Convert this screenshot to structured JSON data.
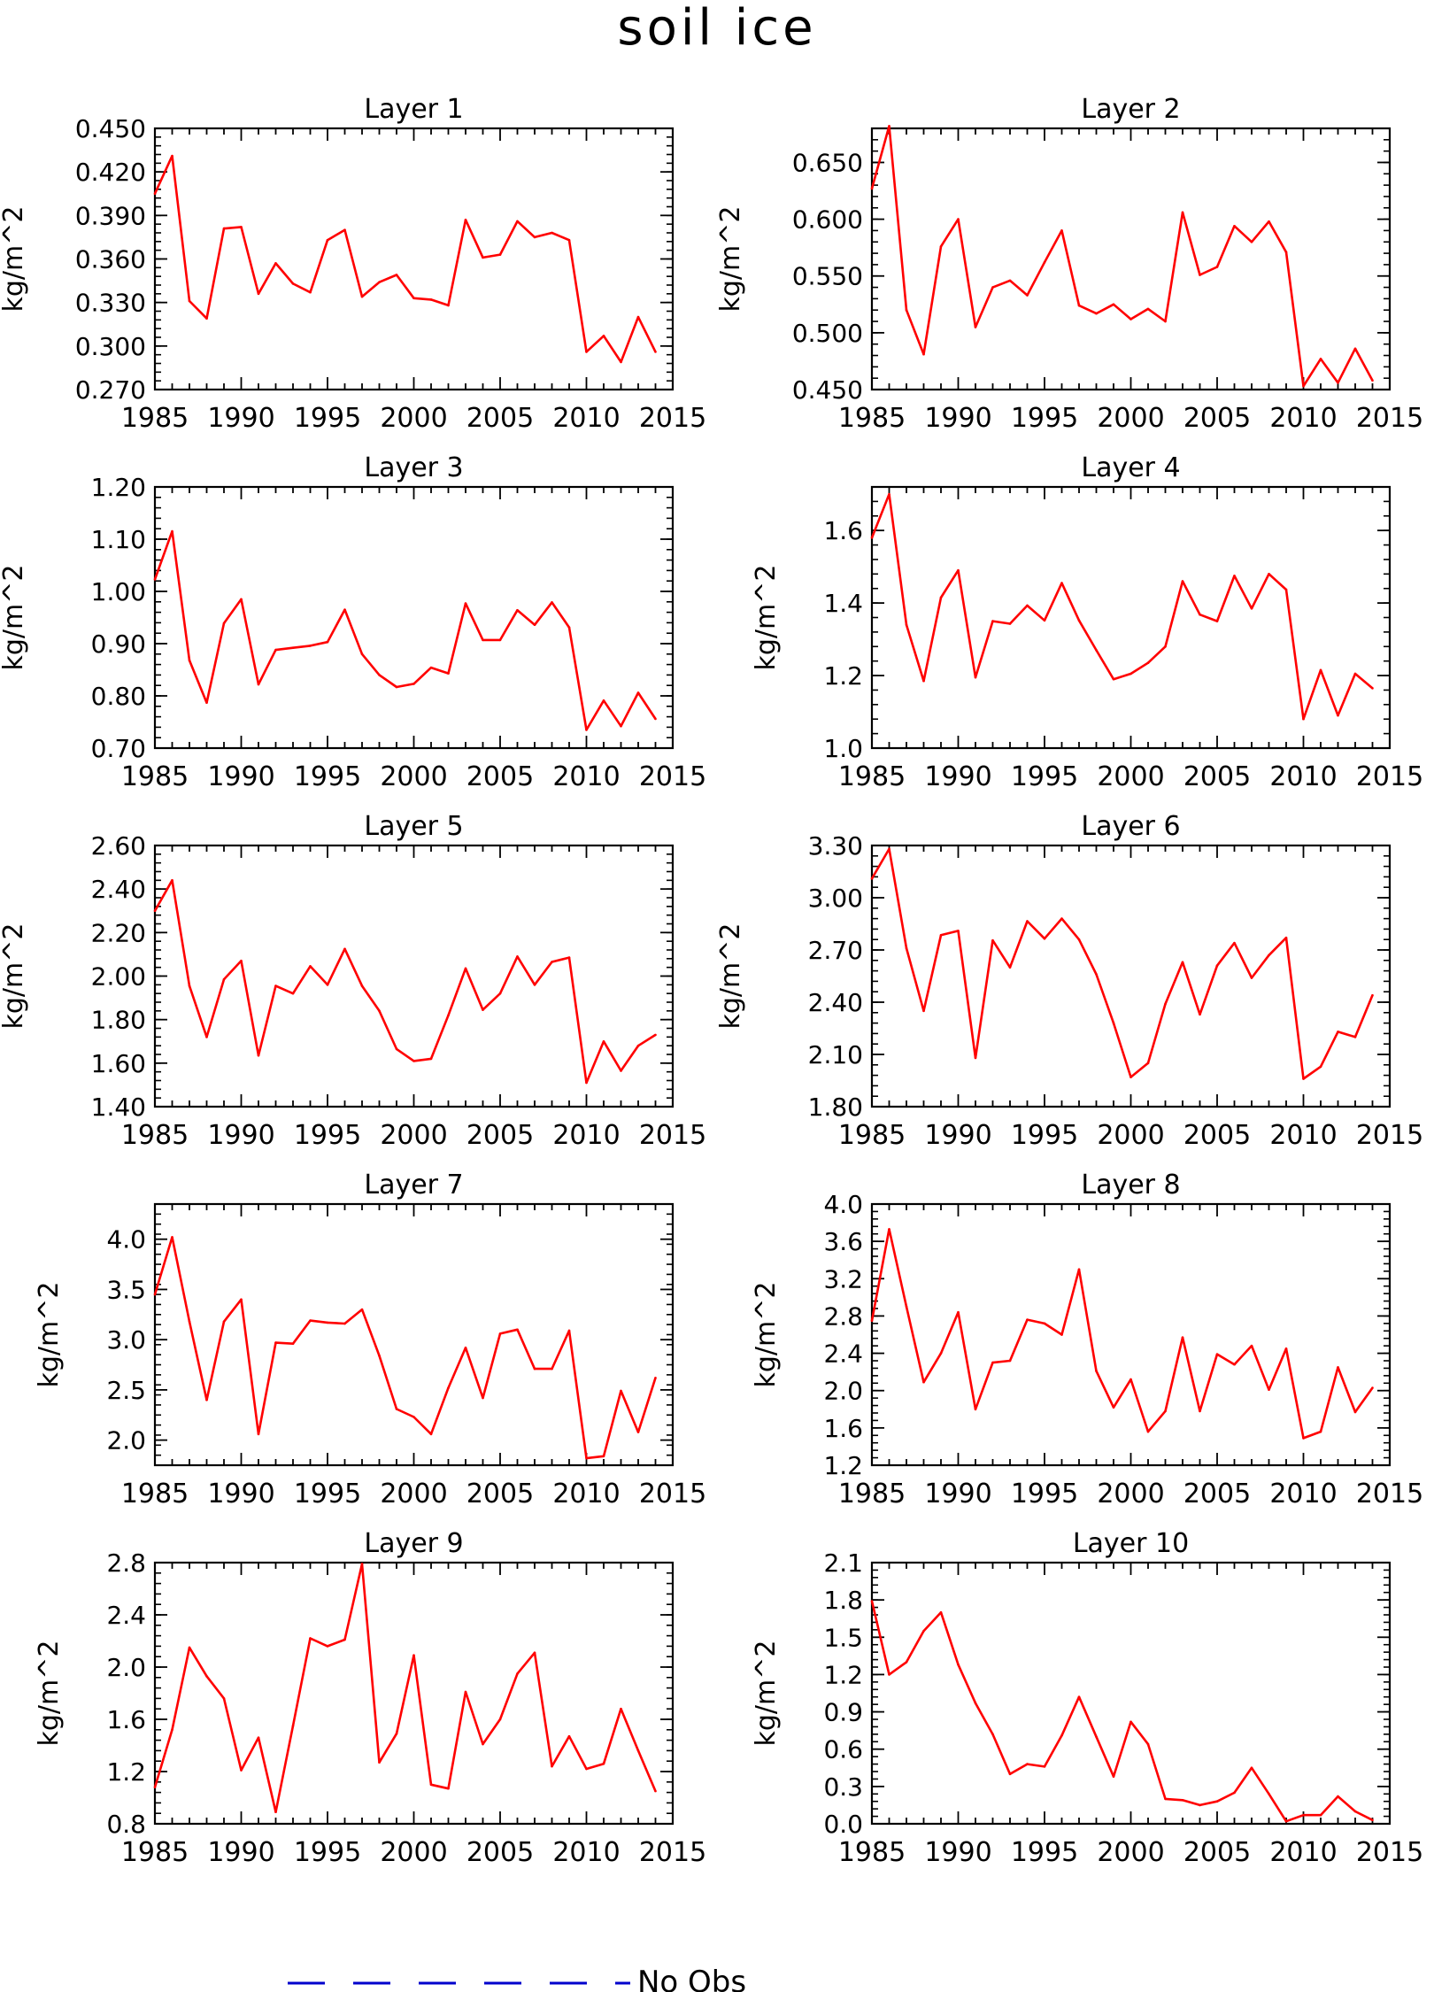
{
  "figure": {
    "title": "soil ice",
    "legend_label": "No Obs",
    "legend_color": "#0000cc",
    "series_color": "#ff0000"
  },
  "chart_data": [
    {
      "type": "line",
      "title": "Layer 1",
      "xlabel": "",
      "ylabel": "kg/m^2",
      "xlim": [
        1985,
        2015
      ],
      "ylim": [
        0.27,
        0.45
      ],
      "xticks": [
        "1985",
        "1990",
        "1995",
        "2000",
        "2005",
        "2010",
        "2015"
      ],
      "yticks": [
        "0.270",
        "0.300",
        "0.330",
        "0.360",
        "0.390",
        "0.420",
        "0.450"
      ],
      "x": [
        1985,
        1986,
        1987,
        1988,
        1989,
        1990,
        1991,
        1992,
        1993,
        1994,
        1995,
        1996,
        1997,
        1998,
        1999,
        2000,
        2001,
        2002,
        2003,
        2004,
        2005,
        2006,
        2007,
        2008,
        2009,
        2010,
        2011,
        2012,
        2013,
        2014
      ],
      "values": [
        0.405,
        0.431,
        0.331,
        0.319,
        0.381,
        0.382,
        0.336,
        0.357,
        0.343,
        0.337,
        0.373,
        0.38,
        0.334,
        0.344,
        0.349,
        0.333,
        0.332,
        0.328,
        0.387,
        0.361,
        0.363,
        0.386,
        0.375,
        0.378,
        0.373,
        0.296,
        0.307,
        0.289,
        0.32,
        0.296
      ]
    },
    {
      "type": "line",
      "title": "Layer 2",
      "xlabel": "",
      "ylabel": "kg/m^2",
      "xlim": [
        1985,
        2015
      ],
      "ylim": [
        0.45,
        0.68
      ],
      "xticks": [
        "1985",
        "1990",
        "1995",
        "2000",
        "2005",
        "2010",
        "2015"
      ],
      "yticks": [
        "0.450",
        "0.500",
        "0.550",
        "0.600",
        "0.650"
      ],
      "x": [
        1985,
        1986,
        1987,
        1988,
        1989,
        1990,
        1991,
        1992,
        1993,
        1994,
        1995,
        1996,
        1997,
        1998,
        1999,
        2000,
        2001,
        2002,
        2003,
        2004,
        2005,
        2006,
        2007,
        2008,
        2009,
        2010,
        2011,
        2012,
        2013,
        2014
      ],
      "values": [
        0.627,
        0.682,
        0.52,
        0.481,
        0.576,
        0.6,
        0.505,
        0.54,
        0.546,
        0.533,
        0.562,
        0.59,
        0.524,
        0.517,
        0.525,
        0.512,
        0.521,
        0.51,
        0.606,
        0.551,
        0.558,
        0.594,
        0.58,
        0.598,
        0.571,
        0.453,
        0.477,
        0.456,
        0.486,
        0.458
      ]
    },
    {
      "type": "line",
      "title": "Layer 3",
      "xlabel": "",
      "ylabel": "kg/m^2",
      "xlim": [
        1985,
        2015
      ],
      "ylim": [
        0.7,
        1.2
      ],
      "xticks": [
        "1985",
        "1990",
        "1995",
        "2000",
        "2005",
        "2010",
        "2015"
      ],
      "yticks": [
        "0.70",
        "0.80",
        "0.90",
        "1.00",
        "1.10",
        "1.20"
      ],
      "x": [
        1985,
        1986,
        1987,
        1988,
        1989,
        1990,
        1991,
        1992,
        1993,
        1994,
        1995,
        1996,
        1997,
        1998,
        1999,
        2000,
        2001,
        2002,
        2003,
        2004,
        2005,
        2006,
        2007,
        2008,
        2009,
        2010,
        2011,
        2012,
        2013,
        2014
      ],
      "values": [
        1.023,
        1.115,
        0.868,
        0.787,
        0.939,
        0.985,
        0.822,
        0.888,
        0.892,
        0.896,
        0.903,
        0.965,
        0.88,
        0.84,
        0.817,
        0.823,
        0.854,
        0.843,
        0.977,
        0.907,
        0.907,
        0.964,
        0.936,
        0.979,
        0.931,
        0.735,
        0.791,
        0.742,
        0.806,
        0.756
      ]
    },
    {
      "type": "line",
      "title": "Layer 4",
      "xlabel": "",
      "ylabel": "kg/m^2",
      "xlim": [
        1985,
        2015
      ],
      "ylim": [
        1.0,
        1.72
      ],
      "xticks": [
        "1985",
        "1990",
        "1995",
        "2000",
        "2005",
        "2010",
        "2015"
      ],
      "yticks": [
        "1.0",
        "1.2",
        "1.4",
        "1.6"
      ],
      "x": [
        1985,
        1986,
        1987,
        1988,
        1989,
        1990,
        1991,
        1992,
        1993,
        1994,
        1995,
        1996,
        1997,
        1998,
        1999,
        2000,
        2001,
        2002,
        2003,
        2004,
        2005,
        2006,
        2007,
        2008,
        2009,
        2010,
        2011,
        2012,
        2013,
        2014
      ],
      "values": [
        1.58,
        1.7,
        1.34,
        1.185,
        1.415,
        1.49,
        1.195,
        1.35,
        1.343,
        1.393,
        1.352,
        1.455,
        1.352,
        1.27,
        1.19,
        1.205,
        1.235,
        1.28,
        1.46,
        1.368,
        1.35,
        1.475,
        1.385,
        1.48,
        1.437,
        1.08,
        1.215,
        1.09,
        1.205,
        1.165
      ]
    },
    {
      "type": "line",
      "title": "Layer 5",
      "xlabel": "",
      "ylabel": "kg/m^2",
      "xlim": [
        1985,
        2015
      ],
      "ylim": [
        1.4,
        2.6
      ],
      "xticks": [
        "1985",
        "1990",
        "1995",
        "2000",
        "2005",
        "2010",
        "2015"
      ],
      "yticks": [
        "1.40",
        "1.60",
        "1.80",
        "2.00",
        "2.20",
        "2.40",
        "2.60"
      ],
      "x": [
        1985,
        1986,
        1987,
        1988,
        1989,
        1990,
        1991,
        1992,
        1993,
        1994,
        1995,
        1996,
        1997,
        1998,
        1999,
        2000,
        2001,
        2002,
        2003,
        2004,
        2005,
        2006,
        2007,
        2008,
        2009,
        2010,
        2011,
        2012,
        2013,
        2014
      ],
      "values": [
        2.3,
        2.44,
        1.955,
        1.72,
        1.985,
        2.07,
        1.635,
        1.955,
        1.92,
        2.045,
        1.96,
        2.125,
        1.955,
        1.84,
        1.665,
        1.61,
        1.62,
        1.82,
        2.035,
        1.845,
        1.92,
        2.09,
        1.96,
        2.065,
        2.085,
        1.51,
        1.7,
        1.565,
        1.68,
        1.73
      ]
    },
    {
      "type": "line",
      "title": "Layer 6",
      "xlabel": "",
      "ylabel": "kg/m^2",
      "xlim": [
        1985,
        2015
      ],
      "ylim": [
        1.8,
        3.3
      ],
      "xticks": [
        "1985",
        "1990",
        "1995",
        "2000",
        "2005",
        "2010",
        "2015"
      ],
      "yticks": [
        "1.80",
        "2.10",
        "2.40",
        "2.70",
        "3.00",
        "3.30"
      ],
      "x": [
        1985,
        1986,
        1987,
        1988,
        1989,
        1990,
        1991,
        1992,
        1993,
        1994,
        1995,
        1996,
        1997,
        1998,
        1999,
        2000,
        2001,
        2002,
        2003,
        2004,
        2005,
        2006,
        2007,
        2008,
        2009,
        2010,
        2011,
        2012,
        2013,
        2014
      ],
      "values": [
        3.11,
        3.28,
        2.71,
        2.35,
        2.785,
        2.81,
        2.08,
        2.755,
        2.6,
        2.865,
        2.765,
        2.88,
        2.76,
        2.56,
        2.28,
        1.97,
        2.05,
        2.39,
        2.63,
        2.33,
        2.61,
        2.74,
        2.54,
        2.67,
        2.77,
        1.96,
        2.03,
        2.23,
        2.2,
        2.44
      ]
    },
    {
      "type": "line",
      "title": "Layer 7",
      "xlabel": "",
      "ylabel": "kg/m^2",
      "xlim": [
        1985,
        2015
      ],
      "ylim": [
        1.75,
        4.35
      ],
      "xticks": [
        "1985",
        "1990",
        "1995",
        "2000",
        "2005",
        "2010",
        "2015"
      ],
      "yticks": [
        "2.0",
        "2.5",
        "3.0",
        "3.5",
        "4.0"
      ],
      "x": [
        1985,
        1986,
        1987,
        1988,
        1989,
        1990,
        1991,
        1992,
        1993,
        1994,
        1995,
        1996,
        1997,
        1998,
        1999,
        2000,
        2001,
        2002,
        2003,
        2004,
        2005,
        2006,
        2007,
        2008,
        2009,
        2010,
        2011,
        2012,
        2013,
        2014
      ],
      "values": [
        3.45,
        4.02,
        3.18,
        2.4,
        3.18,
        3.4,
        2.06,
        2.97,
        2.96,
        3.19,
        3.17,
        3.16,
        3.3,
        2.84,
        2.31,
        2.23,
        2.06,
        2.52,
        2.92,
        2.42,
        3.06,
        3.1,
        2.71,
        2.71,
        3.09,
        1.82,
        1.84,
        2.49,
        2.08,
        2.62
      ]
    },
    {
      "type": "line",
      "title": "Layer 8",
      "xlabel": "",
      "ylabel": "kg/m^2",
      "xlim": [
        1985,
        2015
      ],
      "ylim": [
        1.2,
        4.0
      ],
      "xticks": [
        "1985",
        "1990",
        "1995",
        "2000",
        "2005",
        "2010",
        "2015"
      ],
      "yticks": [
        "1.2",
        "1.6",
        "2.0",
        "2.4",
        "2.8",
        "3.2",
        "3.6",
        "4.0"
      ],
      "x": [
        1985,
        1986,
        1987,
        1988,
        1989,
        1990,
        1991,
        1992,
        1993,
        1994,
        1995,
        1996,
        1997,
        1998,
        1999,
        2000,
        2001,
        2002,
        2003,
        2004,
        2005,
        2006,
        2007,
        2008,
        2009,
        2010,
        2011,
        2012,
        2013,
        2014
      ],
      "values": [
        2.75,
        3.73,
        2.9,
        2.09,
        2.4,
        2.84,
        1.8,
        2.3,
        2.32,
        2.76,
        2.72,
        2.6,
        3.3,
        2.21,
        1.82,
        2.12,
        1.56,
        1.78,
        2.57,
        1.78,
        2.39,
        2.28,
        2.48,
        2.01,
        2.45,
        1.49,
        1.56,
        2.25,
        1.77,
        2.03
      ]
    },
    {
      "type": "line",
      "title": "Layer 9",
      "xlabel": "",
      "ylabel": "kg/m^2",
      "xlim": [
        1985,
        2015
      ],
      "ylim": [
        0.8,
        2.8
      ],
      "xticks": [
        "1985",
        "1990",
        "1995",
        "2000",
        "2005",
        "2010",
        "2015"
      ],
      "yticks": [
        "0.8",
        "1.2",
        "1.6",
        "2.0",
        "2.4",
        "2.8"
      ],
      "x": [
        1985,
        1986,
        1987,
        1988,
        1989,
        1990,
        1991,
        1992,
        1993,
        1994,
        1995,
        1996,
        1997,
        1998,
        1999,
        2000,
        2001,
        2002,
        2003,
        2004,
        2005,
        2006,
        2007,
        2008,
        2009,
        2010,
        2011,
        2012,
        2013,
        2014
      ],
      "values": [
        1.08,
        1.52,
        2.15,
        1.93,
        1.76,
        1.21,
        1.46,
        0.89,
        1.55,
        2.22,
        2.16,
        2.21,
        2.79,
        1.27,
        1.49,
        2.09,
        1.1,
        1.07,
        1.81,
        1.41,
        1.6,
        1.95,
        2.11,
        1.24,
        1.47,
        1.22,
        1.26,
        1.68,
        1.36,
        1.05
      ]
    },
    {
      "type": "line",
      "title": "Layer 10",
      "xlabel": "",
      "ylabel": "kg/m^2",
      "xlim": [
        1985,
        2015
      ],
      "ylim": [
        0.0,
        2.1
      ],
      "xticks": [
        "1985",
        "1990",
        "1995",
        "2000",
        "2005",
        "2010",
        "2015"
      ],
      "yticks": [
        "0.0",
        "0.3",
        "0.6",
        "0.9",
        "1.2",
        "1.5",
        "1.8",
        "2.1"
      ],
      "x": [
        1985,
        1986,
        1987,
        1988,
        1989,
        1990,
        1991,
        1992,
        1993,
        1994,
        1995,
        1996,
        1997,
        1998,
        1999,
        2000,
        2001,
        2002,
        2003,
        2004,
        2005,
        2006,
        2007,
        2008,
        2009,
        2010,
        2011,
        2012,
        2013,
        2014
      ],
      "values": [
        1.79,
        1.2,
        1.3,
        1.55,
        1.7,
        1.28,
        0.97,
        0.72,
        0.4,
        0.48,
        0.46,
        0.71,
        1.02,
        0.7,
        0.38,
        0.82,
        0.64,
        0.2,
        0.19,
        0.15,
        0.18,
        0.25,
        0.45,
        0.24,
        0.02,
        0.07,
        0.07,
        0.22,
        0.1,
        0.03
      ]
    }
  ]
}
